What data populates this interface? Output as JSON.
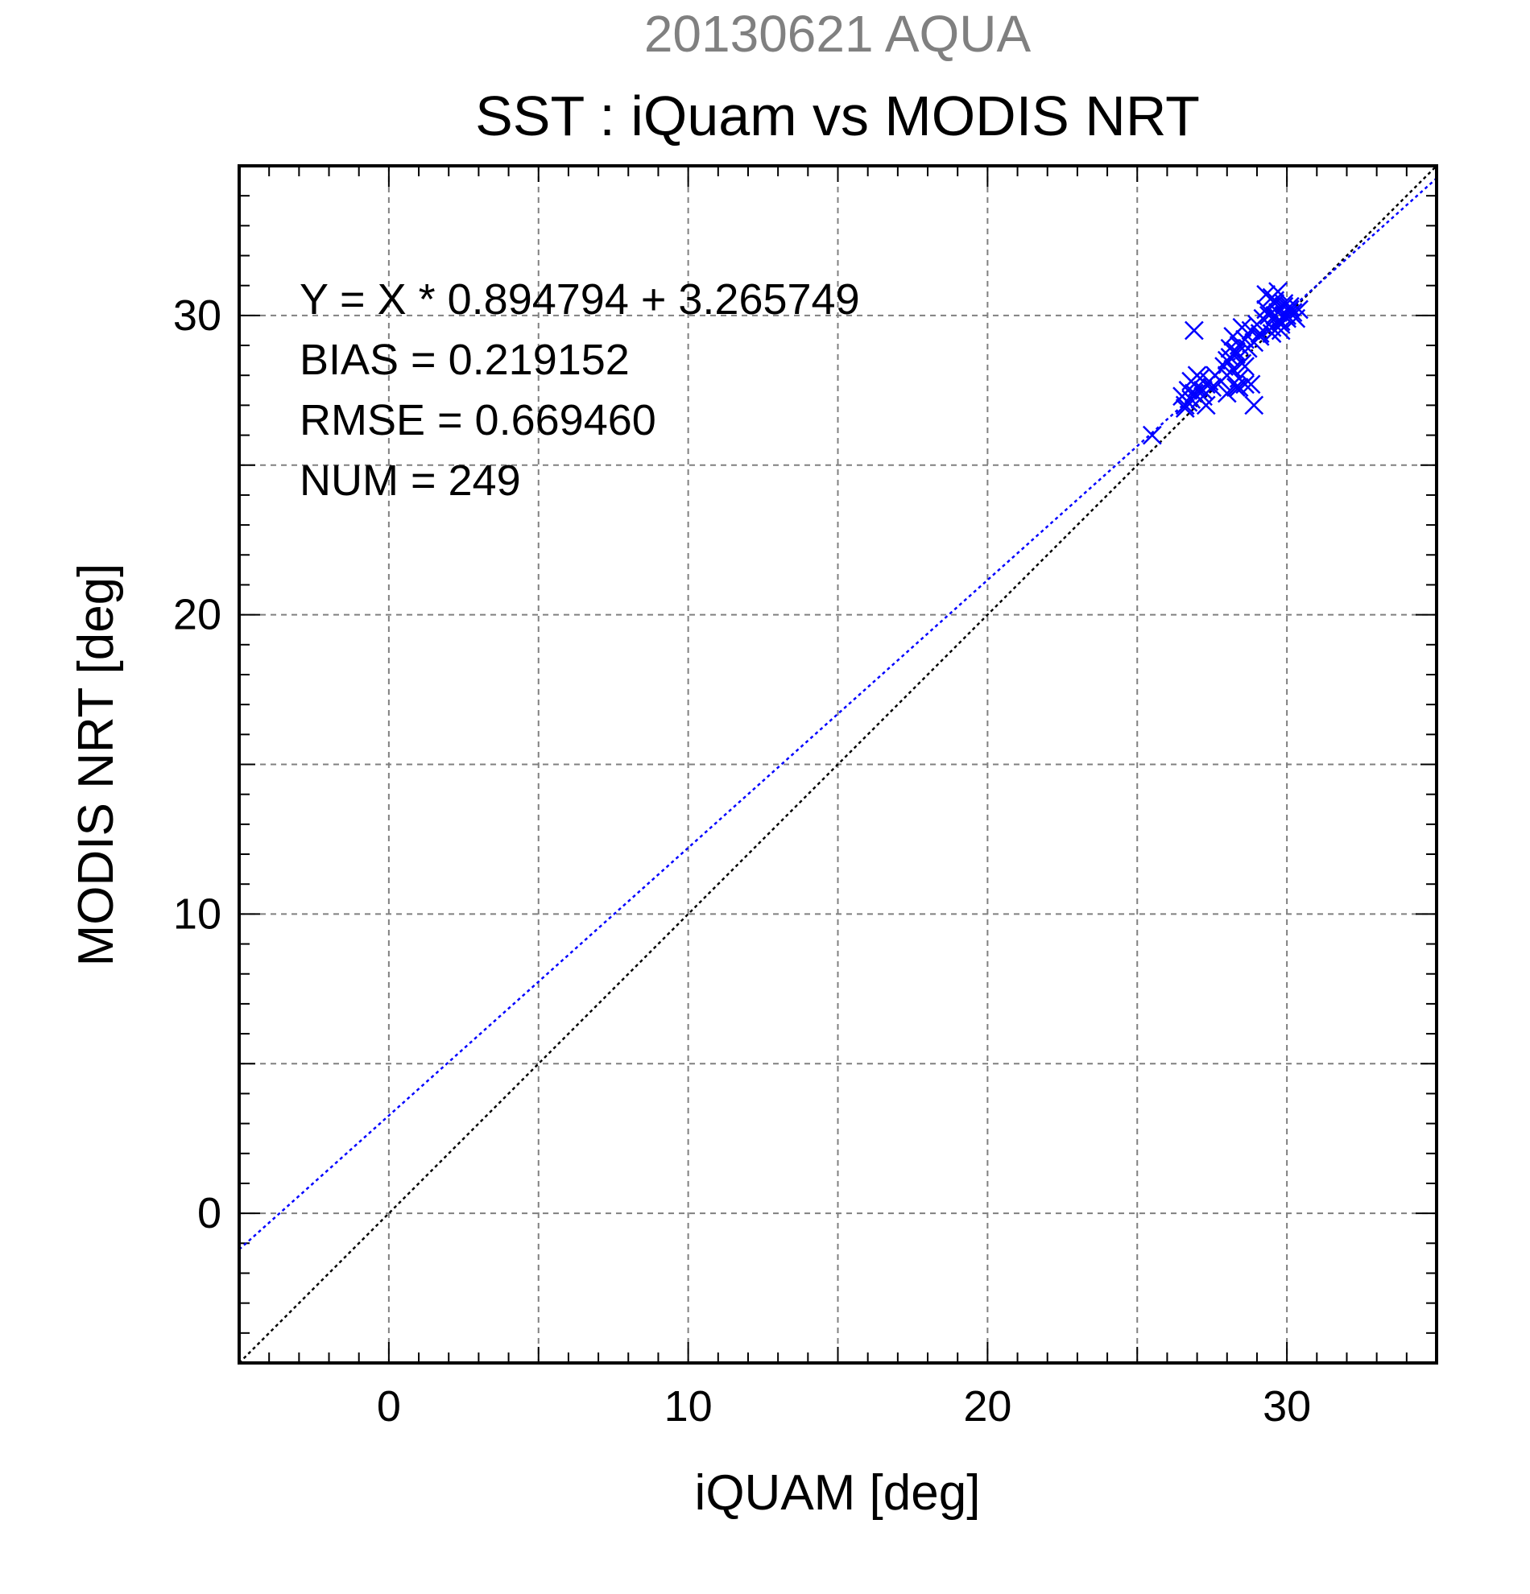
{
  "chart_data": {
    "type": "scatter",
    "suptitle": "20130621 AQUA",
    "title": "SST : iQuam vs MODIS NRT",
    "xlabel": "iQUAM [deg]",
    "ylabel": "MODIS NRT [deg]",
    "xlim": [
      -5,
      35
    ],
    "ylim": [
      -5,
      35
    ],
    "x_major_ticks": [
      0,
      10,
      20,
      30
    ],
    "y_major_ticks": [
      0,
      10,
      20,
      30
    ],
    "grid_step": 5,
    "minor_tick_step": 1,
    "grid": true,
    "colors": {
      "points": "#0000ff",
      "fit_line": "#0000ff",
      "identity_line": "#000000",
      "suptitle": "#808080"
    },
    "stats": [
      "Y = X * 0.894794 + 3.265749",
      "BIAS = 0.219152",
      "RMSE = 0.669460",
      "NUM = 249"
    ],
    "fit": {
      "slope": 0.894794,
      "intercept": 3.265749,
      "style": "dotted"
    },
    "identity_line": {
      "slope": 1,
      "intercept": 0,
      "style": "dotted"
    },
    "marker": "x",
    "series": [
      {
        "x": [
          25.5,
          26.5,
          26.6,
          26.7,
          26.8,
          26.9,
          26.6,
          26.8,
          27.0,
          26.7,
          27.1,
          27.2,
          27.3,
          27.4,
          27.2,
          27.5,
          27.6,
          27.8,
          27.1,
          27.3,
          27.0,
          27.9,
          28.0,
          28.1,
          28.2,
          28.3,
          28.4,
          28.5,
          28.3,
          28.1,
          28.6,
          28.7,
          28.2,
          28.4,
          28.8,
          28.9,
          28.5,
          28.0,
          28.3,
          28.6,
          29.0,
          29.1,
          29.2,
          29.3,
          29.4,
          29.5,
          29.6,
          29.7,
          29.8,
          29.9,
          30.0,
          30.1,
          29.4,
          29.6,
          29.8,
          30.0,
          29.5,
          29.7,
          29.9,
          30.2,
          30.3,
          29.3,
          29.1,
          29.6,
          29.8,
          30.1,
          29.5,
          29.9,
          30.4,
          29.7,
          28.8,
          28.6,
          28.4,
          26.9,
          28.0,
          28.9
        ],
        "y": [
          26.0,
          27.3,
          27.0,
          27.5,
          27.2,
          27.4,
          26.9,
          27.8,
          27.6,
          27.1,
          27.9,
          27.5,
          27.0,
          27.8,
          27.3,
          27.6,
          28.0,
          27.8,
          27.2,
          27.7,
          28.0,
          28.3,
          28.5,
          28.9,
          28.2,
          28.7,
          29.0,
          28.4,
          28.8,
          28.6,
          29.2,
          28.9,
          29.3,
          27.9,
          29.5,
          29.1,
          29.6,
          28.0,
          27.6,
          27.7,
          29.7,
          29.4,
          29.9,
          30.2,
          30.0,
          29.6,
          30.4,
          30.1,
          29.8,
          30.3,
          30.0,
          30.2,
          29.7,
          30.5,
          29.5,
          29.9,
          30.6,
          29.8,
          30.4,
          30.1,
          29.9,
          30.7,
          29.3,
          30.0,
          29.7,
          30.3,
          29.4,
          30.0,
          30.2,
          30.8,
          27.7,
          28.3,
          27.6,
          29.5,
          27.4,
          27.0
        ]
      }
    ]
  }
}
